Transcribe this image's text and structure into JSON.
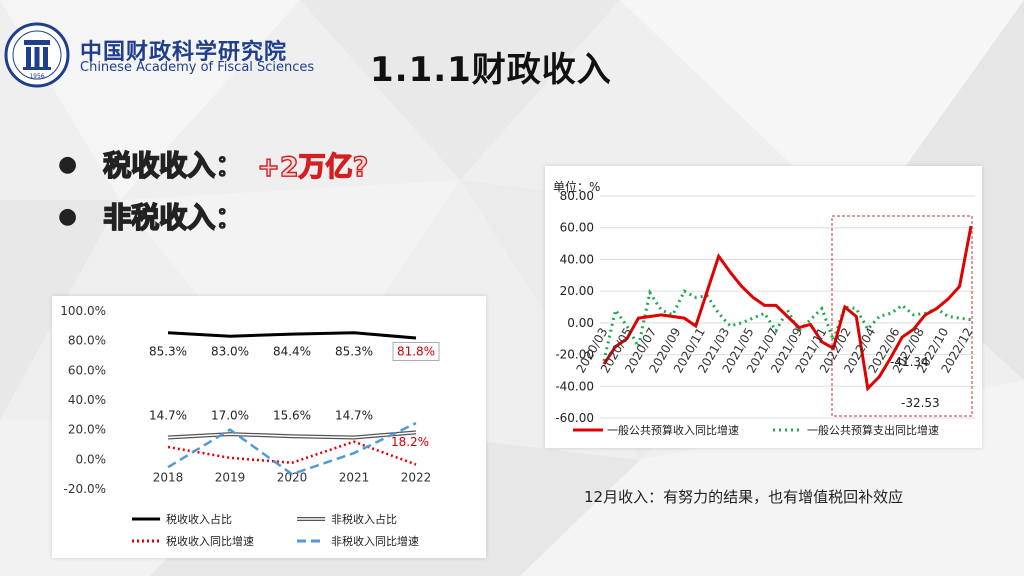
{
  "header": {
    "institution_cn": "中国财政科学研究院",
    "institution_en": "Chinese Academy of Fiscal Sciences",
    "logo_year": "1956",
    "slide_title": "1.1.1财政收入"
  },
  "bullets": [
    {
      "label": "税收收入：",
      "highlight": "+2万亿?"
    },
    {
      "label": "非税收入：",
      "highlight": ""
    }
  ],
  "caption": "12月收入：有努力的结果，也有增值税回补效应",
  "chart_data": [
    {
      "type": "line",
      "x": [
        "2018",
        "2019",
        "2020",
        "2021",
        "2022"
      ],
      "y_ticks": [
        "100.0%",
        "80.0%",
        "60.0%",
        "40.0%",
        "20.0%",
        "0.0%",
        "-20.0%"
      ],
      "ylim": [
        -20,
        100
      ],
      "series": [
        {
          "name": "税收收入占比",
          "color": "#000000",
          "style": "solid",
          "values": [
            85.3,
            83.0,
            84.4,
            85.3,
            81.8
          ],
          "labels": [
            "85.3%",
            "83.0%",
            "84.4%",
            "85.3%",
            "81.8%"
          ]
        },
        {
          "name": "非税收入占比",
          "color": "#555555",
          "style": "double",
          "values": [
            14.7,
            17.0,
            15.6,
            14.7,
            18.2
          ],
          "labels": [
            "14.7%",
            "17.0%",
            "15.6%",
            "14.7%",
            "18.2%"
          ]
        },
        {
          "name": "税收收入同比增速",
          "color": "#e00000",
          "style": "dotted",
          "values": [
            8.3,
            1.0,
            -2.3,
            11.9,
            -3.5
          ]
        },
        {
          "name": "非税收入同比增速",
          "color": "#4f9ad8",
          "style": "dashed",
          "values": [
            -5.3,
            20.0,
            -10.0,
            4.2,
            24.4
          ]
        }
      ],
      "grid": false,
      "legend": "bottom"
    },
    {
      "type": "line",
      "unit_label": "单位：%",
      "ylim": [
        -60,
        80
      ],
      "y_ticks": [
        "80.00",
        "60.00",
        "40.00",
        "20.00",
        "0.00",
        "-20.00",
        "-40.00",
        "-60.00"
      ],
      "x_ticks": [
        "2020/03",
        "2020/05",
        "2020/07",
        "2020/09",
        "2020/11",
        "2021/03",
        "2021/05",
        "2021/07",
        "2021/09",
        "2021/11",
        "2022/02",
        "2022/04",
        "2022/06",
        "2022/08",
        "2022/10",
        "2022/12"
      ],
      "series": [
        {
          "name": "一般公共预算收入同比增速",
          "color": "#e00000",
          "style": "solid",
          "values": [
            -26,
            -15,
            -10,
            3,
            4,
            5,
            4,
            3,
            -2,
            20,
            42,
            32,
            23,
            16,
            11,
            11,
            4,
            -3,
            -1,
            -12,
            -16,
            10,
            4,
            -41.34,
            -34,
            -22,
            -9,
            -4,
            5,
            9,
            15,
            23,
            61
          ]
        },
        {
          "name": "一般公共预算支出同比增速",
          "color": "#21a84d",
          "style": "dotted",
          "values": [
            -24,
            8,
            -2,
            -15,
            19,
            8,
            5,
            20,
            16,
            17,
            6,
            -2,
            0,
            3,
            6,
            -5,
            8,
            -5,
            2,
            9,
            -11,
            10,
            9,
            -4,
            4,
            6,
            11,
            5,
            6,
            9,
            4,
            3,
            2
          ]
        }
      ],
      "annotations": [
        "-41.34",
        "-32.53"
      ],
      "grid": true,
      "legend": "bottom"
    }
  ]
}
